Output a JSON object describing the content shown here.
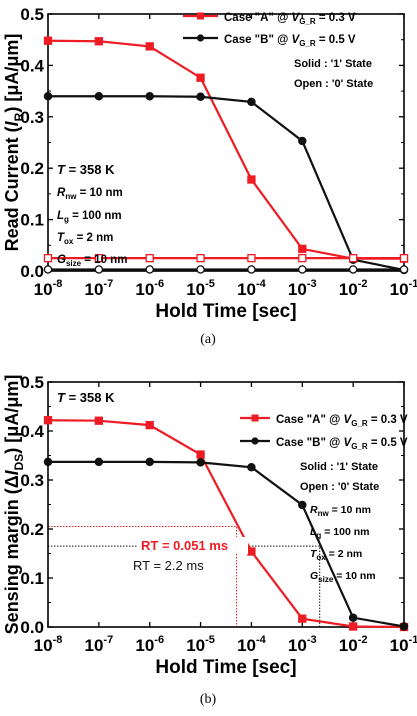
{
  "chart_data": [
    {
      "type": "line",
      "caption": "(a)",
      "xlabel": "Hold Time [sec]",
      "ylabel_parts": [
        {
          "t": "Read Current (",
          "sub": false,
          "it": false
        },
        {
          "t": "I",
          "sub": false,
          "it": true
        },
        {
          "t": "R",
          "sub": true,
          "it": false
        },
        {
          "t": ") [μA/μm]",
          "sub": false,
          "it": false
        }
      ],
      "x_scale": "log",
      "xlim": [
        1e-08,
        0.1
      ],
      "ylim": [
        0,
        0.5
      ],
      "yticks": [
        0.0,
        0.1,
        0.2,
        0.3,
        0.4,
        0.5
      ],
      "ytick_labels": [
        "0.0",
        "0.1",
        "0.2",
        "0.3",
        "0.4",
        "0.5"
      ],
      "xtick_labels": [
        {
          "base": "10",
          "exp": "-8"
        },
        {
          "base": "10",
          "exp": "-7"
        },
        {
          "base": "10",
          "exp": "-6"
        },
        {
          "base": "10",
          "exp": "-5"
        },
        {
          "base": "10",
          "exp": "-4"
        },
        {
          "base": "10",
          "exp": "-3"
        },
        {
          "base": "10",
          "exp": "-2"
        },
        {
          "base": "10",
          "exp": "-1"
        }
      ],
      "legend_position": "top-right",
      "legend": [
        {
          "series": 0,
          "parts": [
            {
              "t": "Case \"A\" @ ",
              "sub": false,
              "it": false
            },
            {
              "t": "V",
              "sub": false,
              "it": true
            },
            {
              "t": "G_R",
              "sub": true,
              "it": false
            },
            {
              "t": " = 0.3 V",
              "sub": false,
              "it": false
            }
          ]
        },
        {
          "series": 1,
          "parts": [
            {
              "t": "Case \"B\" @ ",
              "sub": false,
              "it": false
            },
            {
              "t": "V",
              "sub": false,
              "it": true
            },
            {
              "t": "G_R",
              "sub": true,
              "it": false
            },
            {
              "t": " = 0.5 V",
              "sub": false,
              "it": false
            }
          ]
        }
      ],
      "state_notes": [
        "Solid : '1' State",
        "Open : '0' State"
      ],
      "temperature": {
        "symbol": "T",
        "rest": " = 358 K"
      },
      "params": [
        {
          "sym": "R",
          "sub": "nw",
          "rest": " = 10 nm"
        },
        {
          "sym": "L",
          "sub": "g",
          "rest": " = 100 nm"
        },
        {
          "sym": "T",
          "sub": "ox",
          "rest": " = 2 nm"
        },
        {
          "sym": "G",
          "sub": "size",
          "rest": " = 10 nm"
        }
      ],
      "annotations": [],
      "series": [
        {
          "color": "#ee1c24",
          "marker": "square",
          "filled": true,
          "x": [
            1e-08,
            1e-07,
            1e-06,
            1e-05,
            0.0001,
            0.001,
            0.01,
            0.1
          ],
          "y": [
            0.448,
            0.447,
            0.437,
            0.376,
            0.178,
            0.043,
            0.024,
            0.024
          ]
        },
        {
          "color": "#111111",
          "marker": "circle",
          "filled": true,
          "x": [
            1e-08,
            1e-07,
            1e-06,
            1e-05,
            0.0001,
            0.001,
            0.01,
            0.1
          ],
          "y": [
            0.34,
            0.34,
            0.34,
            0.339,
            0.329,
            0.253,
            0.022,
            0.002
          ]
        },
        {
          "color": "#ee1c24",
          "marker": "square",
          "filled": false,
          "x": [
            1e-08,
            1e-07,
            1e-06,
            1e-05,
            0.0001,
            0.001,
            0.01,
            0.1
          ],
          "y": [
            0.025,
            0.025,
            0.025,
            0.025,
            0.025,
            0.025,
            0.025,
            0.025
          ]
        },
        {
          "color": "#111111",
          "marker": "circle",
          "filled": false,
          "x": [
            1e-08,
            1e-07,
            1e-06,
            1e-05,
            0.0001,
            0.001,
            0.01,
            0.1
          ],
          "y": [
            0.003,
            0.003,
            0.003,
            0.003,
            0.003,
            0.003,
            0.003,
            0.003
          ]
        }
      ]
    },
    {
      "type": "line",
      "caption": "(b)",
      "xlabel": "Hold Time [sec]",
      "ylabel_parts": [
        {
          "t": "Sensing margin (Δ",
          "sub": false,
          "it": false
        },
        {
          "t": "I",
          "sub": false,
          "it": true
        },
        {
          "t": "DS",
          "sub": true,
          "it": false
        },
        {
          "t": ") [μA/μm]",
          "sub": false,
          "it": false
        }
      ],
      "x_scale": "log",
      "xlim": [
        1e-08,
        0.1
      ],
      "ylim": [
        0,
        0.5
      ],
      "yticks": [
        0.0,
        0.1,
        0.2,
        0.3,
        0.4,
        0.5
      ],
      "ytick_labels": [
        "0.0",
        "0.1",
        "0.2",
        "0.3",
        "0.4",
        "0.5"
      ],
      "xtick_labels": [
        {
          "base": "10",
          "exp": "-8"
        },
        {
          "base": "10",
          "exp": "-7"
        },
        {
          "base": "10",
          "exp": "-6"
        },
        {
          "base": "10",
          "exp": "-5"
        },
        {
          "base": "10",
          "exp": "-4"
        },
        {
          "base": "10",
          "exp": "-3"
        },
        {
          "base": "10",
          "exp": "-2"
        },
        {
          "base": "10",
          "exp": "-1"
        }
      ],
      "legend_position": "top-right",
      "legend": [
        {
          "series": 0,
          "parts": [
            {
              "t": "Case \"A\" @ ",
              "sub": false,
              "it": false
            },
            {
              "t": "V",
              "sub": false,
              "it": true
            },
            {
              "t": "G_R",
              "sub": true,
              "it": false
            },
            {
              "t": " = 0.3 V",
              "sub": false,
              "it": false
            }
          ]
        },
        {
          "series": 1,
          "parts": [
            {
              "t": "Case \"B\" @ ",
              "sub": false,
              "it": false
            },
            {
              "t": "V",
              "sub": false,
              "it": true
            },
            {
              "t": "G_R",
              "sub": true,
              "it": false
            },
            {
              "t": " = 0.5 V",
              "sub": false,
              "it": false
            }
          ]
        }
      ],
      "state_notes": [
        "Solid : '1' State",
        "Open : '0' State"
      ],
      "temperature": {
        "symbol": "T",
        "rest": " = 358 K"
      },
      "params": [
        {
          "sym": "R",
          "sub": "nw",
          "rest": " = 10 nm"
        },
        {
          "sym": "L",
          "sub": "g",
          "rest": " = 100 nm"
        },
        {
          "sym": "T",
          "sub": "ox",
          "rest": " = 2 nm"
        },
        {
          "sym": "G",
          "sub": "size",
          "rest": " = 10 nm"
        }
      ],
      "annotations": [
        {
          "label": "RT = 0.051 ms",
          "color": "#ee1c24",
          "x": 5.1e-05,
          "y": 0.205
        },
        {
          "label": "RT = 2.2 ms",
          "color": "#111111",
          "x": 0.0022,
          "y": 0.165
        }
      ],
      "series": [
        {
          "color": "#ee1c24",
          "marker": "square",
          "filled": true,
          "x": [
            1e-08,
            1e-07,
            1e-06,
            1e-05,
            0.0001,
            0.001,
            0.01,
            0.1
          ],
          "y": [
            0.422,
            0.421,
            0.412,
            0.352,
            0.154,
            0.017,
            0.001,
            0.0
          ]
        },
        {
          "color": "#111111",
          "marker": "circle",
          "filled": true,
          "x": [
            1e-08,
            1e-07,
            1e-06,
            1e-05,
            0.0001,
            0.001,
            0.01,
            0.1
          ],
          "y": [
            0.337,
            0.337,
            0.337,
            0.336,
            0.326,
            0.249,
            0.019,
            0.001
          ]
        }
      ]
    }
  ]
}
